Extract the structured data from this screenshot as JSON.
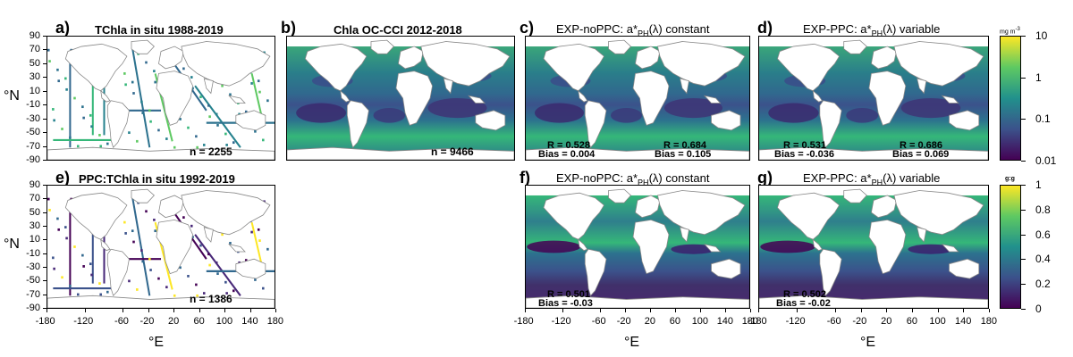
{
  "panels": {
    "a": {
      "label": "a)",
      "title": "TChla in situ 1988-2019",
      "n": "n = 2255"
    },
    "b": {
      "label": "b)",
      "title": "Chla OC-CCI 2012-2018",
      "n": "n = 9466"
    },
    "c": {
      "label": "c)",
      "title_prefix": "EXP-noPPC: a*",
      "title_sub": "PH",
      "title_suffix": "(λ) constant",
      "stat1_r": "R =  0.528",
      "stat1_bias": "Bias =  0.004",
      "stat2_r": "R =  0.684",
      "stat2_bias": "Bias =  0.105"
    },
    "d": {
      "label": "d)",
      "title_prefix": "EXP-PPC: a*",
      "title_sub": "PH",
      "title_suffix": "(λ) variable",
      "stat1_r": "R =  0.531",
      "stat1_bias": "Bias =  -0.036",
      "stat2_r": "R =  0.686",
      "stat2_bias": "Bias =  0.069"
    },
    "e": {
      "label": "e)",
      "title": "PPC:TChla in situ 1992-2019",
      "n": "n = 1386"
    },
    "f": {
      "label": "f)",
      "title_prefix": "EXP-noPPC: a*",
      "title_sub": "PH",
      "title_suffix": "(λ) constant",
      "stat1_r": "R =  0.501",
      "stat1_bias": "Bias =  -0.03"
    },
    "g": {
      "label": "g)",
      "title_prefix": "EXP-PPC: a*",
      "title_sub": "PH",
      "title_suffix": "(λ) variable",
      "stat1_r": "R =  0.502",
      "stat1_bias": "Bias =  -0.02"
    }
  },
  "axes": {
    "ylabel": "°N",
    "xlabel": "°E",
    "yticks": [
      "90",
      "70",
      "50",
      "30",
      "10",
      "-10",
      "-30",
      "-50",
      "-70",
      "-90"
    ],
    "xticks": [
      "-180",
      "-120",
      "-60",
      "-20",
      "20",
      "60",
      "100",
      "140",
      "180"
    ],
    "xticks_bottom_left": [
      "-180",
      "-120",
      "-60",
      "-20",
      "20",
      "60",
      "100",
      "140",
      "180"
    ]
  },
  "colorbars": {
    "top": {
      "unit": "mg m",
      "unit_sup": "-3",
      "ticks": [
        "10",
        "1",
        "0.1",
        "0.01"
      ]
    },
    "bottom": {
      "unit": "g:g",
      "ticks": [
        "1",
        "0.8",
        "0.6",
        "0.4",
        "0.2",
        "0"
      ]
    }
  },
  "colors": {
    "viridis_dark": "#440154",
    "viridis_mid": "#21918c",
    "viridis_light": "#5ec962",
    "viridis_top": "#fde725",
    "land": "#ffffff",
    "coast": "#888888"
  }
}
